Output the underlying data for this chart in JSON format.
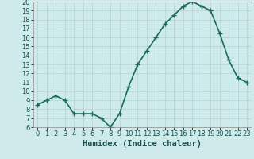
{
  "x": [
    0,
    1,
    2,
    3,
    4,
    5,
    6,
    7,
    8,
    9,
    10,
    11,
    12,
    13,
    14,
    15,
    16,
    17,
    18,
    19,
    20,
    21,
    22,
    23
  ],
  "y": [
    8.5,
    9.0,
    9.5,
    9.0,
    7.5,
    7.5,
    7.5,
    7.0,
    6.0,
    7.5,
    10.5,
    13.0,
    14.5,
    16.0,
    17.5,
    18.5,
    19.5,
    20.0,
    19.5,
    19.0,
    16.5,
    13.5,
    11.5,
    11.0
  ],
  "xlabel": "Humidex (Indice chaleur)",
  "xlim": [
    -0.5,
    23.5
  ],
  "ylim": [
    6,
    20
  ],
  "yticks": [
    6,
    7,
    8,
    9,
    10,
    11,
    12,
    13,
    14,
    15,
    16,
    17,
    18,
    19,
    20
  ],
  "xticks": [
    0,
    1,
    2,
    3,
    4,
    5,
    6,
    7,
    8,
    9,
    10,
    11,
    12,
    13,
    14,
    15,
    16,
    17,
    18,
    19,
    20,
    21,
    22,
    23
  ],
  "line_color": "#1a6b5a",
  "marker": "+",
  "bg_color": "#ceeaea",
  "grid_color": "#b0d4d4",
  "axis_bg": "#ceeaea",
  "xlabel_color": "#1a5050",
  "xlabel_fontsize": 7.5,
  "tick_fontsize": 6,
  "linewidth": 1.2,
  "markersize": 4,
  "markeredgewidth": 1.0
}
